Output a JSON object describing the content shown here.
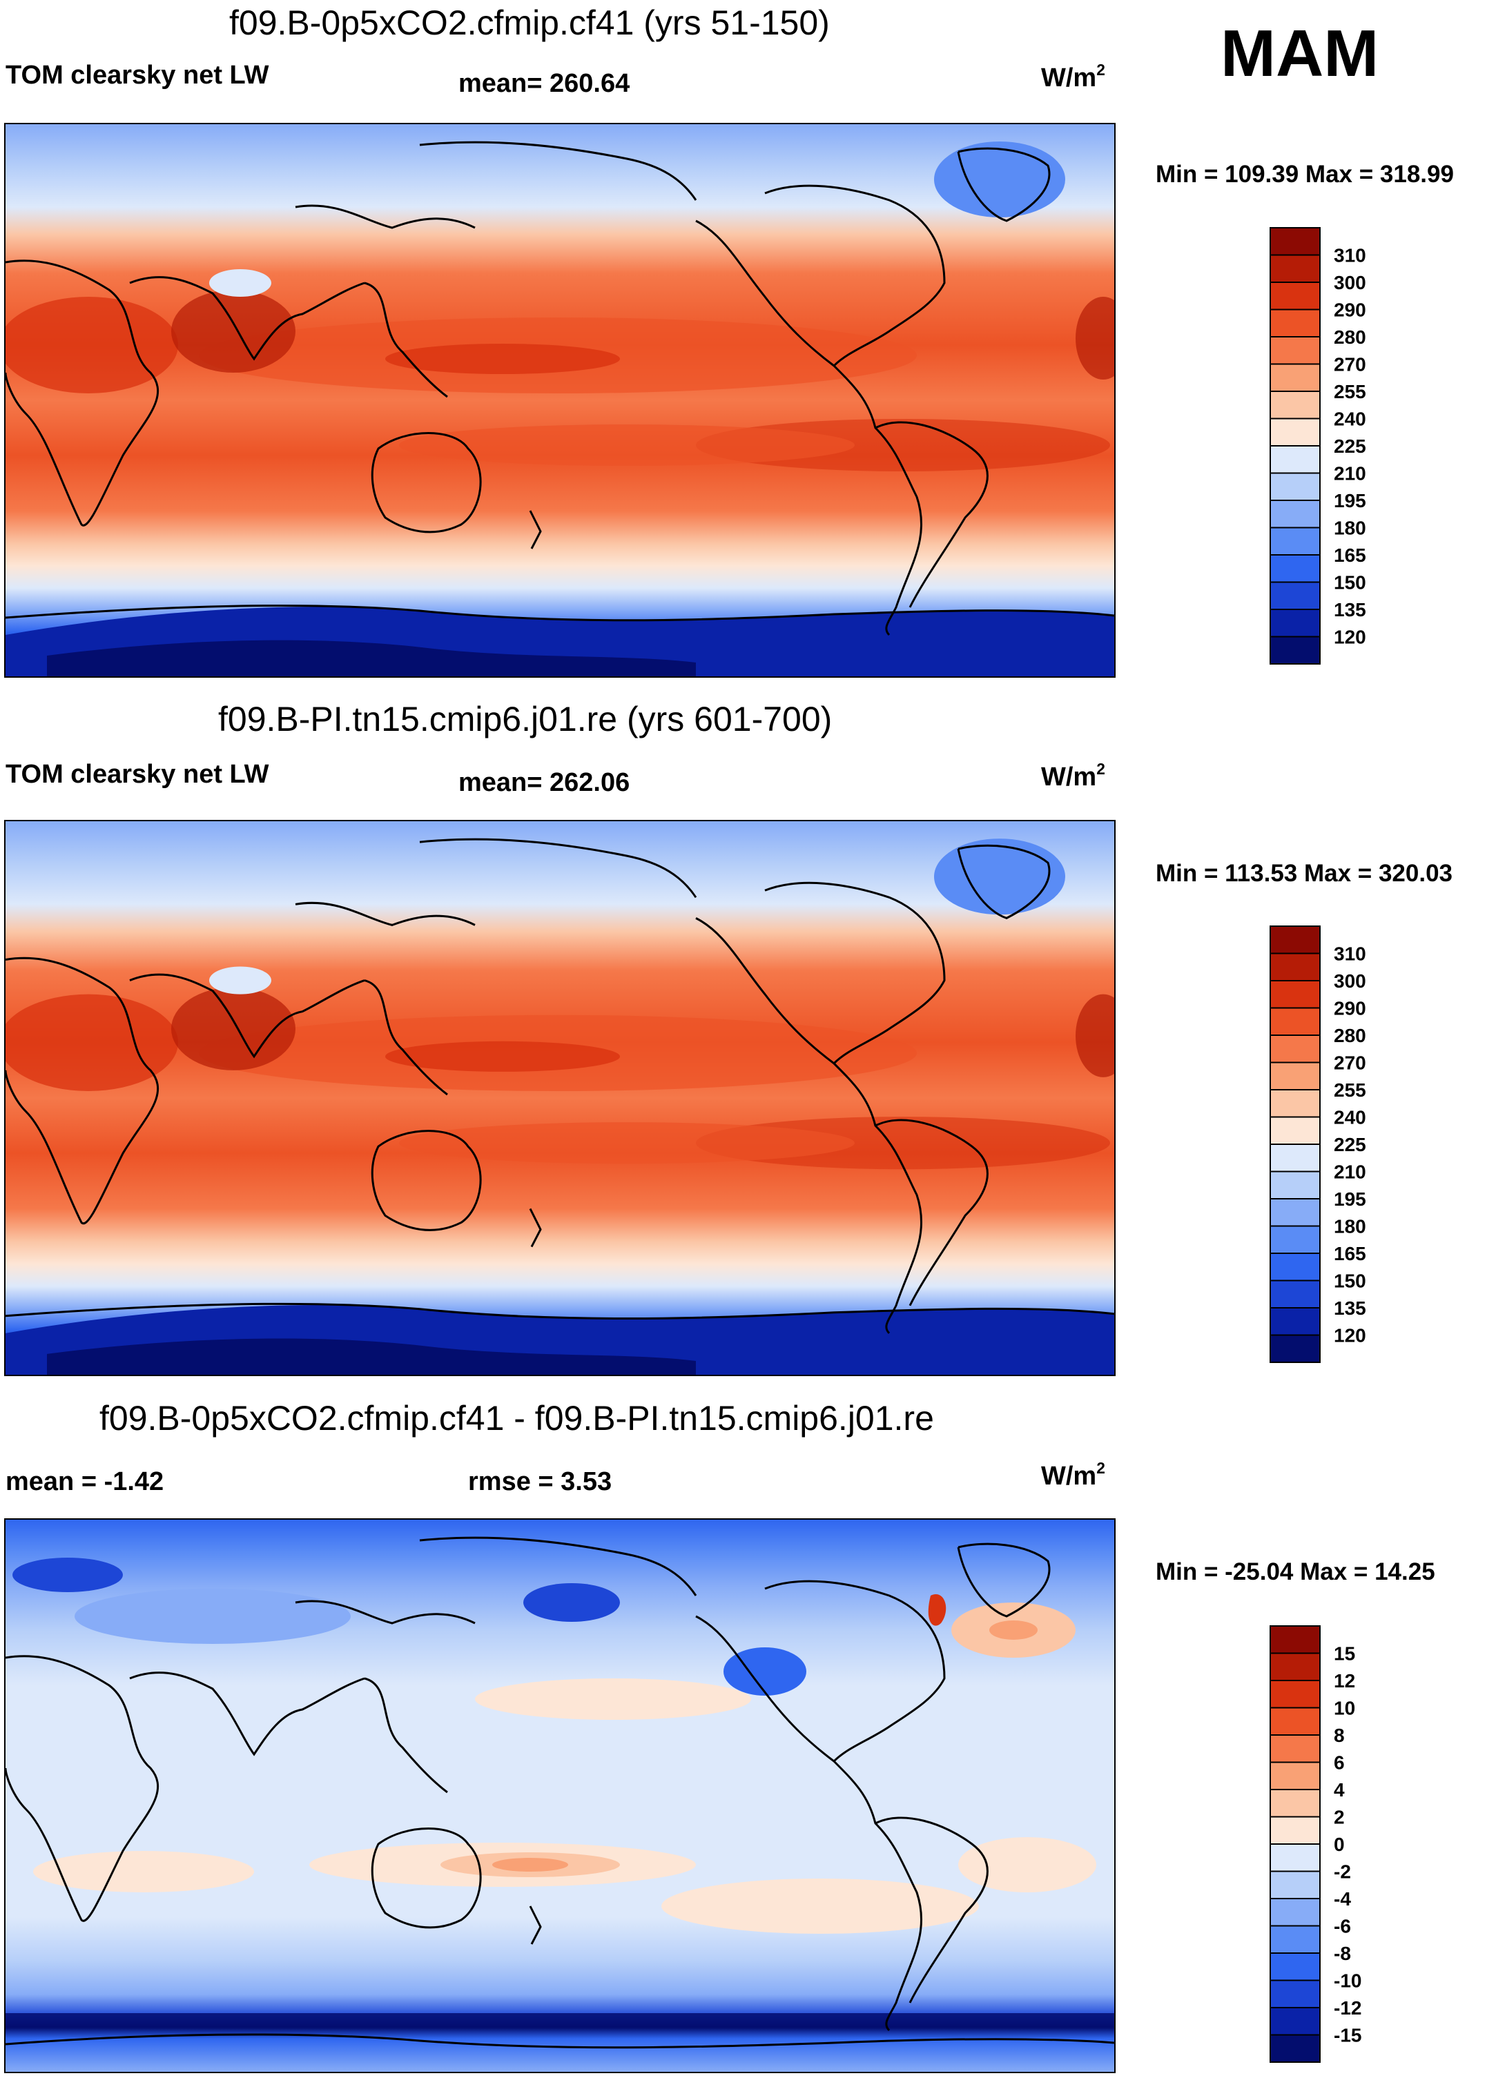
{
  "season": "MAM",
  "units_base": "W/m",
  "units_sup": "2",
  "panels": [
    {
      "title": "f09.B-0p5xCO2.cfmip.cf41 (yrs 51-150)",
      "variable": "TOM clearsky net LW",
      "stat": "mean= 260.64",
      "minmax": "Min = 109.39 Max = 318.99"
    },
    {
      "title": "f09.B-PI.tn15.cmip6.j01.re (yrs 601-700)",
      "variable": "TOM clearsky net LW",
      "stat": "mean= 262.06",
      "minmax": "Min = 113.53 Max = 320.03"
    },
    {
      "title": "f09.B-0p5xCO2.cfmip.cf41 - f09.B-PI.tn15.cmip6.j01.re",
      "stat_mean": "mean =  -1.42",
      "stat_rmse": "rmse =   3.53",
      "minmax": "Min = -25.04 Max =  14.25"
    }
  ],
  "chart_data": [
    {
      "type": "heatmap",
      "title": "f09.B-0p5xCO2.cfmip.cf41 (yrs 51-150)",
      "variable": "TOM clearsky net LW",
      "mean": 260.64,
      "min": 109.39,
      "max": 318.99,
      "units": "W/m2",
      "colorbar_levels": [
        120,
        135,
        150,
        165,
        180,
        195,
        210,
        225,
        240,
        255,
        270,
        280,
        290,
        300,
        310
      ],
      "colors": [
        "#030d6e",
        "#0a22a8",
        "#1d46d6",
        "#2f66f0",
        "#5a8cf5",
        "#87acf7",
        "#b6cff9",
        "#dde9fb",
        "#fde6d6",
        "#fbc6a6",
        "#f9a175",
        "#f5784a",
        "#ec5326",
        "#d93310",
        "#b51c06",
        "#8c0a03"
      ]
    },
    {
      "type": "heatmap",
      "title": "f09.B-PI.tn15.cmip6.j01.re (yrs 601-700)",
      "variable": "TOM clearsky net LW",
      "mean": 262.06,
      "min": 113.53,
      "max": 320.03,
      "units": "W/m2",
      "colorbar_levels": [
        120,
        135,
        150,
        165,
        180,
        195,
        210,
        225,
        240,
        255,
        270,
        280,
        290,
        300,
        310
      ],
      "colors": [
        "#030d6e",
        "#0a22a8",
        "#1d46d6",
        "#2f66f0",
        "#5a8cf5",
        "#87acf7",
        "#b6cff9",
        "#dde9fb",
        "#fde6d6",
        "#fbc6a6",
        "#f9a175",
        "#f5784a",
        "#ec5326",
        "#d93310",
        "#b51c06",
        "#8c0a03"
      ]
    },
    {
      "type": "heatmap",
      "title": "f09.B-0p5xCO2.cfmip.cf41 - f09.B-PI.tn15.cmip6.j01.re",
      "mean": -1.42,
      "rmse": 3.53,
      "min": -25.04,
      "max": 14.25,
      "units": "W/m2",
      "colorbar_levels": [
        -15,
        -12,
        -10,
        -8,
        -6,
        -4,
        -2,
        0,
        2,
        4,
        6,
        8,
        10,
        12,
        15
      ],
      "colors": [
        "#030d6e",
        "#0a22a8",
        "#1d46d6",
        "#2f66f0",
        "#5a8cf5",
        "#87acf7",
        "#b6cff9",
        "#dde9fb",
        "#fde6d6",
        "#fbc6a6",
        "#f9a175",
        "#f5784a",
        "#ec5326",
        "#d93310",
        "#b51c06",
        "#8c0a03"
      ]
    }
  ]
}
